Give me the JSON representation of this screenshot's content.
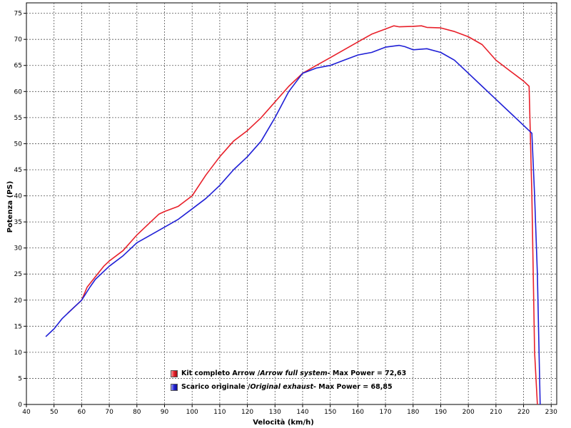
{
  "chart_data": {
    "type": "line",
    "xlabel": "Velocità (km/h)",
    "ylabel": "Potenza (PS)",
    "xlim": [
      40,
      232
    ],
    "ylim": [
      0,
      77
    ],
    "xticks": [
      40,
      50,
      60,
      70,
      80,
      90,
      100,
      110,
      120,
      130,
      140,
      150,
      160,
      170,
      180,
      190,
      200,
      210,
      220,
      230
    ],
    "yticks": [
      0,
      5,
      10,
      15,
      20,
      25,
      30,
      35,
      40,
      45,
      50,
      55,
      60,
      65,
      70,
      75
    ],
    "grid": true,
    "legend_position": "bottom-center",
    "series": [
      {
        "name": "Kit completo Arrow / Arrow full system - Max Power = 72,63",
        "color": "#e8202a",
        "x": [
          55,
          58,
          60,
          62,
          65,
          68,
          70,
          75,
          80,
          85,
          88,
          90,
          95,
          100,
          105,
          110,
          115,
          120,
          125,
          130,
          135,
          140,
          145,
          150,
          155,
          160,
          165,
          170,
          173,
          175,
          180,
          183,
          185,
          190,
          195,
          200,
          205,
          210,
          215,
          220,
          222,
          223,
          224,
          225
        ],
        "y": [
          17.5,
          19,
          20,
          22.5,
          24.5,
          26.5,
          27.5,
          29.5,
          32.5,
          35,
          36.5,
          37,
          38,
          40,
          44,
          47.5,
          50.5,
          52.5,
          55,
          58,
          61,
          63.5,
          65,
          66.5,
          68,
          69.5,
          71,
          72,
          72.6,
          72.4,
          72.5,
          72.6,
          72.3,
          72.2,
          71.5,
          70.5,
          69,
          66,
          64,
          62,
          61,
          40,
          10,
          0
        ]
      },
      {
        "name": "Scarico originale / Original exhaust - Max Power = 68,85",
        "color": "#1f1fd6",
        "x": [
          47,
          50,
          53,
          57,
          60,
          63,
          65,
          70,
          75,
          80,
          85,
          90,
          95,
          100,
          105,
          110,
          115,
          120,
          125,
          130,
          135,
          140,
          145,
          150,
          155,
          160,
          165,
          170,
          175,
          177,
          180,
          185,
          190,
          195,
          200,
          205,
          210,
          215,
          220,
          223,
          224,
          225,
          226
        ],
        "y": [
          13,
          14.5,
          16.5,
          18.5,
          20,
          22.5,
          24,
          26.5,
          28.5,
          31,
          32.5,
          34,
          35.5,
          37.5,
          39.5,
          42,
          45,
          47.5,
          50.5,
          55,
          60,
          63.5,
          64.5,
          65,
          66,
          67,
          67.5,
          68.5,
          68.85,
          68.6,
          68,
          68.2,
          67.5,
          66,
          63.5,
          61,
          58.5,
          56,
          53.5,
          52,
          40,
          25,
          0
        ]
      }
    ]
  },
  "legend": {
    "entries": [
      {
        "prefix": "Kit completo Arrow / ",
        "italic": "Arrow full system",
        "suffix": " - Max Power = 72,63",
        "color": "#e8202a"
      },
      {
        "prefix": "Scarico originale / ",
        "italic": "Original exhaust",
        "suffix": " - Max Power = 68,85",
        "color": "#1f1fd6"
      }
    ]
  }
}
